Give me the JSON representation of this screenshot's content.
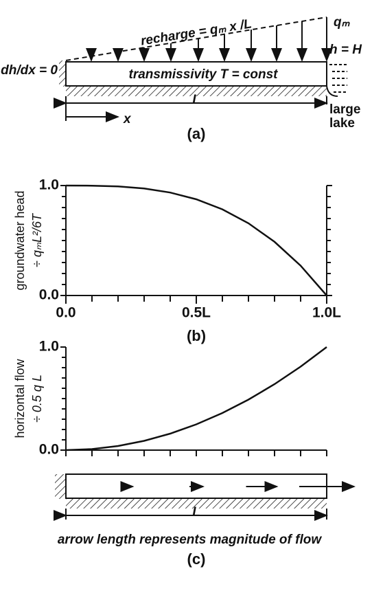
{
  "diagram_a": {
    "recharge": "recharge = qₘ x /L",
    "qm": "qₘ",
    "boundary_right": "h = H",
    "boundary_left": "dh/dx = 0",
    "aquifer": "transmissivity T = const",
    "length": "L",
    "x_axis": "x",
    "lake_1": "large",
    "lake_2": "lake",
    "panel": "(a)"
  },
  "chart_data": [
    {
      "type": "line",
      "title": "(b)",
      "y_label": [
        "groundwater head",
        "÷ qₘL²/6T"
      ],
      "x": [
        0,
        0.1,
        0.2,
        0.3,
        0.4,
        0.5,
        0.6,
        0.7,
        0.8,
        0.9,
        1.0
      ],
      "values": [
        1,
        0.999,
        0.992,
        0.973,
        0.936,
        0.875,
        0.784,
        0.657,
        0.488,
        0.271,
        0
      ],
      "color": "#111111",
      "xlim": [
        0,
        1
      ],
      "ylim": [
        0,
        1
      ],
      "xticks": [
        {
          "value": 0,
          "label": "0.0"
        },
        {
          "value": 0.5,
          "label": "0.5L"
        },
        {
          "value": 1,
          "label": "1.0L"
        }
      ],
      "yticks": [
        {
          "value": 0,
          "label": "0.0"
        },
        {
          "value": 1,
          "label": "1.0"
        }
      ],
      "xticks_minor": [
        0.1,
        0.2,
        0.3,
        0.4,
        0.6,
        0.7,
        0.8,
        0.9
      ],
      "yticks_minor": [
        0.1,
        0.2,
        0.3,
        0.4,
        0.5,
        0.6,
        0.7,
        0.8,
        0.9
      ],
      "frame": true
    },
    {
      "type": "line",
      "title": "(c)",
      "y_label": [
        "horizontal flow",
        "÷ 0.5 q L"
      ],
      "x": [
        0,
        0.1,
        0.2,
        0.3,
        0.4,
        0.5,
        0.6,
        0.7,
        0.8,
        0.9,
        1.0
      ],
      "values": [
        0,
        0.01,
        0.04,
        0.09,
        0.16,
        0.25,
        0.36,
        0.49,
        0.64,
        0.81,
        1
      ],
      "color": "#111111",
      "xlim": [
        0,
        1
      ],
      "ylim": [
        0,
        1
      ],
      "xticks": [],
      "yticks": [
        {
          "value": 0,
          "label": "0.0"
        },
        {
          "value": 1,
          "label": "1.0"
        }
      ],
      "xticks_minor": [
        0,
        0.1,
        0.2,
        0.3,
        0.4,
        0.5,
        0.6,
        0.7,
        0.8,
        0.9,
        1.0
      ],
      "yticks_minor": [
        0.1,
        0.2,
        0.3,
        0.4,
        0.5,
        0.6,
        0.7,
        0.8,
        0.9
      ],
      "frame": false
    }
  ],
  "flow_arrows": {
    "x": [
      0.25,
      0.5,
      0.75,
      1.0
    ],
    "values": [
      0.0625,
      0.25,
      0.5625,
      1
    ],
    "length": "L",
    "caption": "arrow length represents magnitude of flow"
  }
}
